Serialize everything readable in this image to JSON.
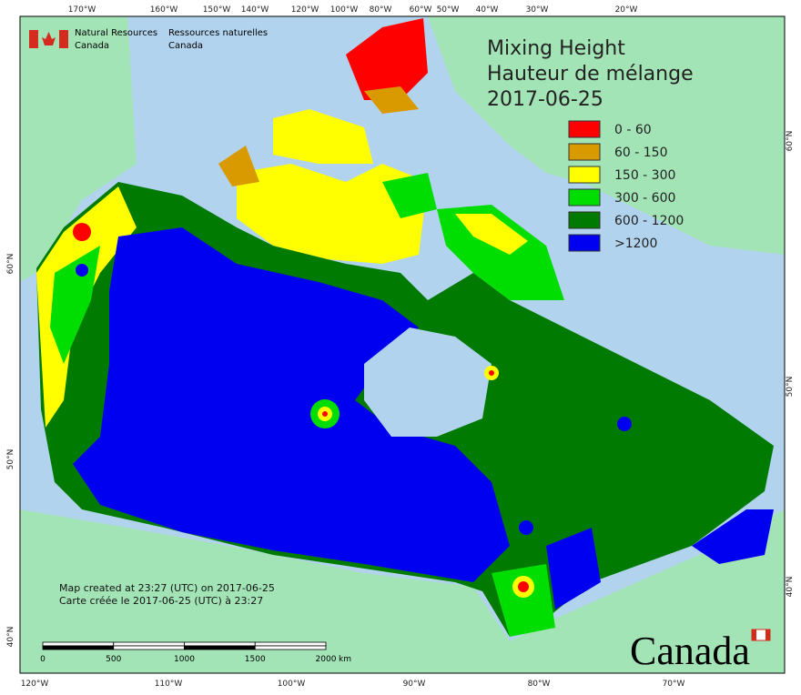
{
  "header": {
    "agency_en": [
      "Natural Resources",
      "Canada"
    ],
    "agency_fr": [
      "Ressources naturelles",
      "Canada"
    ]
  },
  "title": [
    "Mixing Height",
    "Hauteur de mélange",
    "2017-06-25"
  ],
  "legend": [
    {
      "label": "0 - 60",
      "color": "#ff0000"
    },
    {
      "label": "60 - 150",
      "color": "#d99a00"
    },
    {
      "label": "150 - 300",
      "color": "#ffff00"
    },
    {
      "label": "300 - 600",
      "color": "#00dd00"
    },
    {
      "label": "600 - 1200",
      "color": "#007a00"
    },
    {
      "label": ">1200",
      "color": "#0000f0"
    }
  ],
  "graticule": {
    "top": [
      "170°W",
      "160°W",
      "150°W",
      "140°W",
      "120°W",
      "100°W",
      "80°W",
      "60°W",
      "50°W",
      "40°W",
      "30°W",
      "20°W"
    ],
    "bottom": [
      "120°W",
      "110°W",
      "100°W",
      "90°W",
      "80°W",
      "70°W"
    ],
    "left": [
      "60°N",
      "50°N",
      "40°N"
    ],
    "right": [
      "60°N",
      "50°N",
      "40°N"
    ]
  },
  "notes": [
    "Map created at 23:27 (UTC) on 2017-06-25",
    "Carte créée le 2017-06-25 (UTC) à 23:27"
  ],
  "scale_bar": {
    "ticks": [
      "0",
      "500",
      "1000",
      "1500",
      "2000"
    ],
    "unit": "km"
  },
  "wordmark": "Canada"
}
